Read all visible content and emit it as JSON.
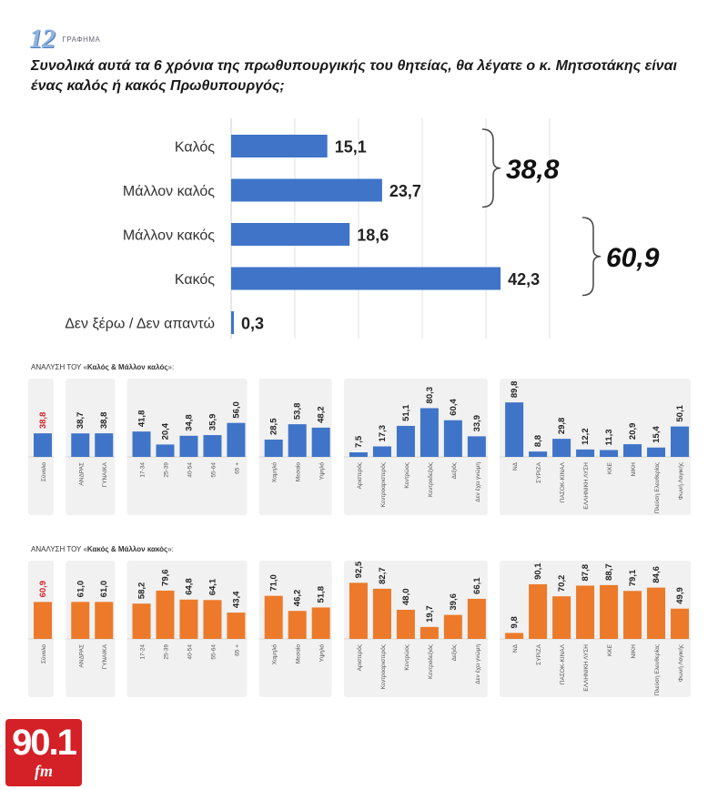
{
  "header": {
    "number": "12",
    "number_label": "ΓΡΑΦΗΜΑ",
    "question": "Συνολικά αυτά τα 6 χρόνια της πρωθυπουργικής του θητείας, θα λέγατε ο κ. Μητσοτάκης είναι ένας καλός ή κακός Πρωθυπουργός;"
  },
  "colors": {
    "blue": "#3f74c8",
    "orange": "#ec7a2a",
    "red_label": "#d42027"
  },
  "logo": {
    "text": "90.1",
    "sub": "fm"
  },
  "chart_data": [
    {
      "type": "bar",
      "orientation": "horizontal",
      "categories": [
        "Καλός",
        "Μάλλον καλός",
        "Μάλλον κακός",
        "Κακός",
        "Δεν ξέρω / Δεν απαντώ"
      ],
      "values": [
        15.1,
        23.7,
        18.6,
        42.3,
        0.3
      ],
      "value_labels": [
        "15,1",
        "23,7",
        "18,6",
        "42,3",
        "0,3"
      ],
      "brackets": [
        {
          "from": 0,
          "to": 1,
          "label": "38,8"
        },
        {
          "from": 2,
          "to": 3,
          "label": "60,9"
        }
      ],
      "xlim": [
        0,
        50
      ],
      "grid": true
    },
    {
      "type": "bar",
      "title_prefix": "ΑΝΑΛΥΣΗ ΤΟΥ «",
      "title_bold": "Καλός & Μάλλον καλός",
      "title_suffix": "»:",
      "ylim": [
        0,
        100
      ],
      "groups": [
        {
          "categories": [
            "Σύνολο"
          ],
          "values": [
            38.8
          ],
          "labels": [
            "38,8"
          ]
        },
        {
          "categories": [
            "ΑΝΔΡΑΣ",
            "ΓΥΝΑΙΚΑ"
          ],
          "values": [
            38.7,
            38.8
          ],
          "labels": [
            "38,7",
            "38,8"
          ]
        },
        {
          "categories": [
            "17-34",
            "25-39",
            "40-54",
            "55-64",
            "65 +"
          ],
          "values": [
            41.8,
            20.4,
            34.8,
            35.9,
            56.0
          ],
          "labels": [
            "41,8",
            "20,4",
            "34,8",
            "35,9",
            "56,0"
          ]
        },
        {
          "categories": [
            "Χαμηλό",
            "Μεσαίο",
            "Υψηλό"
          ],
          "values": [
            28.5,
            53.8,
            48.2
          ],
          "labels": [
            "28,5",
            "53,8",
            "48,2"
          ]
        },
        {
          "categories": [
            "Αριστερός",
            "Κεντροαριστερός",
            "Κεντρώος",
            "Κεντροδεξιός",
            "Δεξιός",
            "Δεν έχει γνώμη"
          ],
          "values": [
            7.5,
            17.3,
            51.1,
            80.3,
            60.4,
            33.9
          ],
          "labels": [
            "7,5",
            "17,3",
            "51,1",
            "80,3",
            "60,4",
            "33,9"
          ]
        },
        {
          "categories": [
            "ΝΔ",
            "ΣΥΡΙΖΑ",
            "ΠΑΣΟΚ-ΚΙΝΑΛ",
            "ΕΛΛΗΝΙΚΗ ΛΥΣΗ",
            "ΚΚΕ",
            "ΝΙΚΗ",
            "Πλεύση Ελευθερίας",
            "Φωνή Λογικής"
          ],
          "values": [
            89.8,
            8.8,
            29.8,
            12.2,
            11.3,
            20.9,
            15.4,
            50.1
          ],
          "labels": [
            "89,8",
            "8,8",
            "29,8",
            "12,2",
            "11,3",
            "20,9",
            "15,4",
            "50,1"
          ]
        }
      ]
    },
    {
      "type": "bar",
      "title_prefix": "ΑΝΑΛΥΣΗ ΤΟΥ «",
      "title_bold": "Κακός & Μάλλον κακός",
      "title_suffix": "»:",
      "ylim": [
        0,
        100
      ],
      "groups": [
        {
          "categories": [
            "Σύνολο"
          ],
          "values": [
            60.9
          ],
          "labels": [
            "60,9"
          ]
        },
        {
          "categories": [
            "ΑΝΔΡΑΣ",
            "ΓΥΝΑΙΚΑ"
          ],
          "values": [
            61.0,
            61.0
          ],
          "labels": [
            "61,0",
            "61,0"
          ]
        },
        {
          "categories": [
            "17-24",
            "25-39",
            "40-54",
            "55-64",
            "65 +"
          ],
          "values": [
            58.2,
            79.6,
            64.8,
            64.1,
            43.4
          ],
          "labels": [
            "58,2",
            "79,6",
            "64,8",
            "64,1",
            "43,4"
          ]
        },
        {
          "categories": [
            "Χαμηλό",
            "Μεσαίο",
            "Υψηλό"
          ],
          "values": [
            71.0,
            46.2,
            51.8
          ],
          "labels": [
            "71,0",
            "46,2",
            "51,8"
          ]
        },
        {
          "categories": [
            "Αριστερός",
            "Κεντροαριστερός",
            "Κεντρώος",
            "Κεντροδεξιός",
            "Δεξιός",
            "Δεν έχει γνώμη"
          ],
          "values": [
            92.5,
            82.7,
            48.0,
            19.7,
            39.6,
            66.1
          ],
          "labels": [
            "92,5",
            "82,7",
            "48,0",
            "19,7",
            "39,6",
            "66,1"
          ]
        },
        {
          "categories": [
            "ΝΔ",
            "ΣΥΡΙΖΑ",
            "ΠΑΣΟΚ-ΚΙΝΑΛ",
            "ΕΛΛΗΝΙΚΗ ΛΥΣΗ",
            "ΚΚΕ",
            "ΝΙΚΗ",
            "Πλεύση Ελευθερίας",
            "Φωνή Λογικής"
          ],
          "values": [
            9.8,
            90.1,
            70.2,
            87.8,
            88.7,
            79.1,
            84.6,
            49.9
          ],
          "labels": [
            "9,8",
            "90,1",
            "70,2",
            "87,8",
            "88,7",
            "79,1",
            "84,6",
            "49,9"
          ]
        }
      ]
    }
  ]
}
